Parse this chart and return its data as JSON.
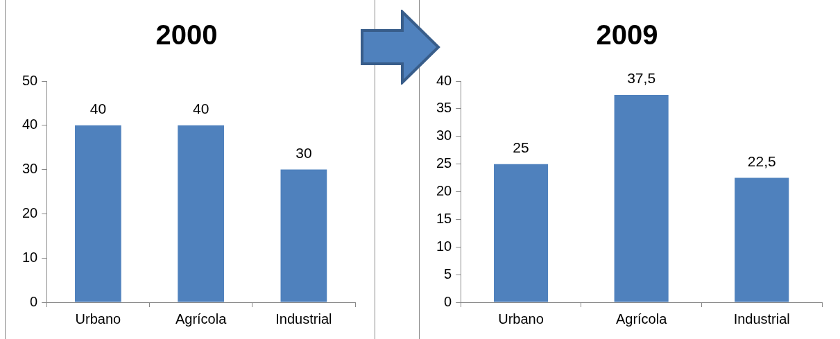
{
  "chart_data": [
    {
      "type": "bar",
      "title": "2000",
      "categories": [
        "Urbano",
        "Agrícola",
        "Industrial"
      ],
      "values": [
        40,
        40,
        30
      ],
      "value_labels": [
        "40",
        "40",
        "30"
      ],
      "color": "#4f81bd",
      "ylim": [
        0,
        50
      ],
      "yticks": [
        0,
        10,
        20,
        30,
        40,
        50
      ],
      "grid": false,
      "legend": false
    },
    {
      "type": "bar",
      "title": "2009",
      "categories": [
        "Urbano",
        "Agrícola",
        "Industrial"
      ],
      "values": [
        25,
        37.5,
        22.5
      ],
      "value_labels": [
        "25",
        "37,5",
        "22,5"
      ],
      "color": "#4f81bd",
      "ylim": [
        0,
        40
      ],
      "yticks": [
        0,
        5,
        10,
        15,
        20,
        25,
        30,
        35,
        40
      ],
      "grid": false,
      "legend": false
    }
  ]
}
